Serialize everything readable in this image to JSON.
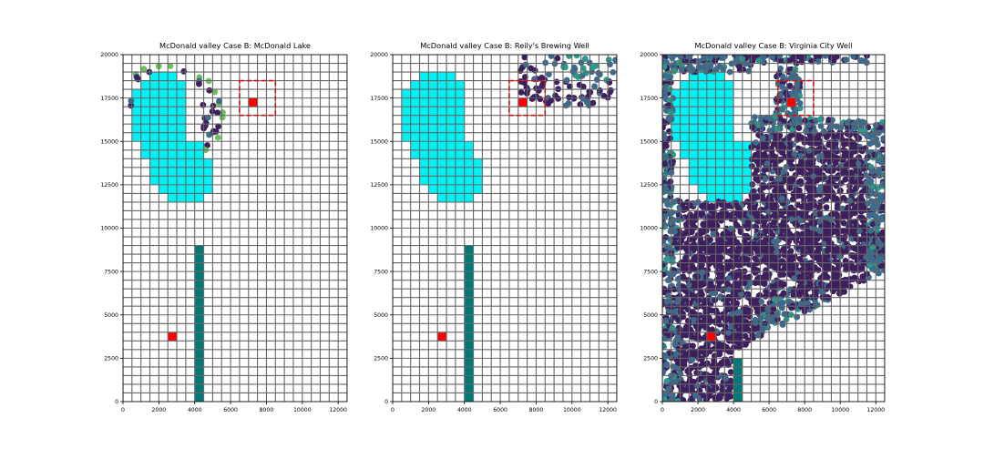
{
  "figure": {
    "background": "#ffffff"
  },
  "colors": {
    "grid_line": "#666666",
    "lake_cell": "#00f2f5",
    "river_cell": "#007a78",
    "well_cell": "#ff0000",
    "focus_box": "#cc1111",
    "particle_dark": "#3e1f5e",
    "particle_mid": "#3b6a8c",
    "particle_teal": "#2a9a8a",
    "particle_green": "#6cc15a"
  },
  "chart_data": [
    {
      "type": "scatter",
      "title": "McDonald valley Case B: McDonald Lake",
      "xlim": [
        0,
        12500
      ],
      "ylim": [
        0,
        20000
      ],
      "xticks": [
        "0",
        "2000",
        "4000",
        "6000",
        "8000",
        "10000",
        "12000"
      ],
      "yticks": [
        "0",
        "2500",
        "5000",
        "7500",
        "10000",
        "12500",
        "15000",
        "17500",
        "20000"
      ],
      "grid_cell": [
        500,
        500
      ],
      "lake_cells_by_row": [
        {
          "y": [
            18500,
            19000
          ],
          "x": [
            1500,
            3000
          ]
        },
        {
          "y": [
            18000,
            18500
          ],
          "x": [
            1000,
            3500
          ]
        },
        {
          "y": [
            15000,
            18000
          ],
          "x": [
            500,
            3500
          ]
        },
        {
          "y": [
            14000,
            15000
          ],
          "x": [
            1000,
            4500
          ]
        },
        {
          "y": [
            12500,
            14000
          ],
          "x": [
            1500,
            5000
          ]
        },
        {
          "y": [
            12000,
            12500
          ],
          "x": [
            2000,
            5000
          ]
        },
        {
          "y": [
            11500,
            12000
          ],
          "x": [
            2500,
            4500
          ]
        }
      ],
      "river_cells": {
        "x": [
          4000,
          4500
        ],
        "y": [
          0,
          9000
        ]
      },
      "wells": [
        {
          "x": [
            2500,
            3000
          ],
          "y": [
            3500,
            4000
          ]
        },
        {
          "x": [
            7000,
            7500
          ],
          "y": [
            17000,
            17500
          ]
        }
      ],
      "focus_box": {
        "x": [
          6500,
          8500
        ],
        "y": [
          16500,
          18500
        ]
      },
      "particle_region": "arc",
      "particle_colors": [
        "particle_dark",
        "particle_mid",
        "particle_green"
      ]
    },
    {
      "type": "scatter",
      "title": "McDonald valley Case B: Reily's Brewing Well",
      "xlim": [
        0,
        12500
      ],
      "ylim": [
        0,
        20000
      ],
      "xticks": [
        "0",
        "2000",
        "4000",
        "6000",
        "8000",
        "10000",
        "12000"
      ],
      "yticks": [
        "0",
        "2500",
        "5000",
        "7500",
        "10000",
        "12500",
        "15000",
        "17500",
        "20000"
      ],
      "grid_cell": [
        500,
        500
      ],
      "lake_cells_by_row": [
        {
          "y": [
            18500,
            19000
          ],
          "x": [
            1500,
            3500
          ]
        },
        {
          "y": [
            18000,
            18500
          ],
          "x": [
            1000,
            4000
          ]
        },
        {
          "y": [
            15000,
            18000
          ],
          "x": [
            500,
            4000
          ]
        },
        {
          "y": [
            14000,
            15000
          ],
          "x": [
            1000,
            4500
          ]
        },
        {
          "y": [
            12500,
            14000
          ],
          "x": [
            1500,
            5000
          ]
        },
        {
          "y": [
            12000,
            12500
          ],
          "x": [
            2000,
            5000
          ]
        },
        {
          "y": [
            11500,
            12000
          ],
          "x": [
            2500,
            4500
          ]
        }
      ],
      "river_cells": {
        "x": [
          4000,
          4500
        ],
        "y": [
          0,
          9000
        ]
      },
      "wells": [
        {
          "x": [
            2500,
            3000
          ],
          "y": [
            3500,
            4000
          ]
        },
        {
          "x": [
            7000,
            7500
          ],
          "y": [
            17000,
            17500
          ]
        }
      ],
      "focus_box": {
        "x": [
          6500,
          8500
        ],
        "y": [
          16500,
          18500
        ]
      },
      "particle_region": "cap",
      "particle_colors": [
        "particle_dark",
        "particle_mid",
        "particle_teal"
      ]
    },
    {
      "type": "scatter",
      "title": "McDonald valley Case B: Virginia City Well",
      "xlim": [
        0,
        12500
      ],
      "ylim": [
        0,
        20000
      ],
      "xticks": [
        "0",
        "2000",
        "4000",
        "6000",
        "8000",
        "10000",
        "12000"
      ],
      "yticks": [
        "0",
        "2500",
        "5000",
        "7500",
        "10000",
        "12500",
        "15000",
        "17500",
        "20000"
      ],
      "grid_cell": [
        500,
        500
      ],
      "lake_cells_by_row": [
        {
          "y": [
            18500,
            19000
          ],
          "x": [
            1500,
            3500
          ]
        },
        {
          "y": [
            18000,
            18500
          ],
          "x": [
            1000,
            4000
          ]
        },
        {
          "y": [
            15000,
            18000
          ],
          "x": [
            500,
            4000
          ]
        },
        {
          "y": [
            14000,
            15000
          ],
          "x": [
            1000,
            5000
          ]
        },
        {
          "y": [
            12500,
            14000
          ],
          "x": [
            1500,
            5000
          ]
        },
        {
          "y": [
            12000,
            12500
          ],
          "x": [
            2000,
            5000
          ]
        },
        {
          "y": [
            11500,
            12000
          ],
          "x": [
            2500,
            4500
          ]
        }
      ],
      "river_cells": {
        "x": [
          4000,
          4500
        ],
        "y": [
          0,
          2500
        ]
      },
      "wells": [
        {
          "x": [
            2500,
            3000
          ],
          "y": [
            3500,
            4000
          ]
        },
        {
          "x": [
            7000,
            7500
          ],
          "y": [
            17000,
            17500
          ]
        }
      ],
      "focus_box": {
        "x": [
          6500,
          8500
        ],
        "y": [
          16500,
          18500
        ]
      },
      "particle_region": "plume",
      "particle_colors": [
        "particle_dark",
        "particle_mid",
        "particle_teal"
      ]
    }
  ]
}
